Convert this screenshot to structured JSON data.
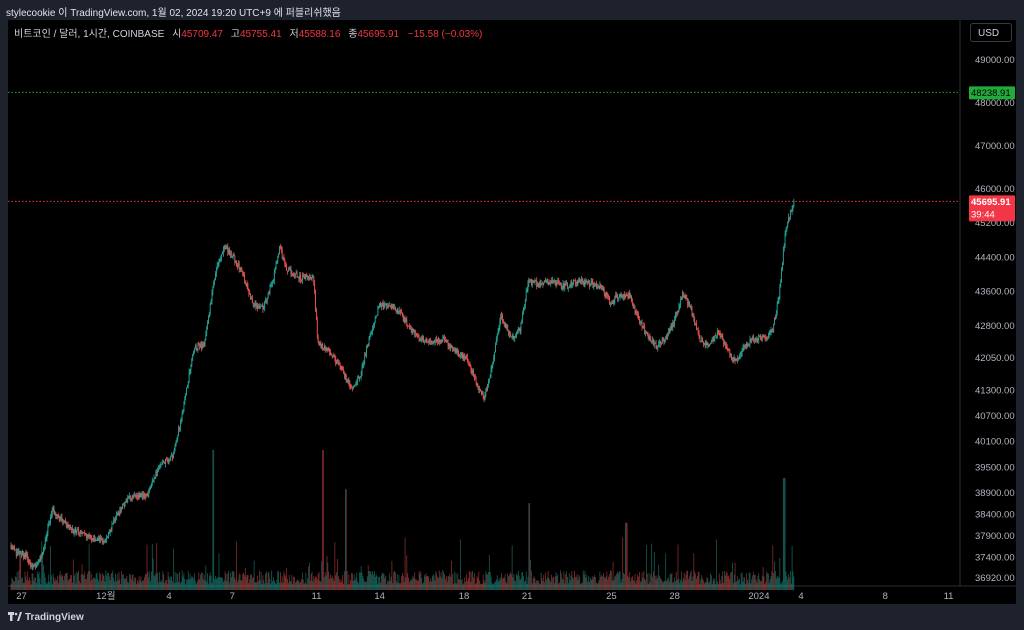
{
  "caption": "stylecookie 이 TradingView.com, 1월 02, 2024 19:20 UTC+9 에 퍼블리쉬했음",
  "symbol_title": "비트코인 / 달러, 1시간, COINBASE",
  "ohlc": {
    "open_label": "시",
    "open": "45709.47",
    "high_label": "고",
    "high": "45755.41",
    "low_label": "저",
    "low": "45588.16",
    "close_label": "종",
    "close": "45695.91",
    "change": "−15.58 (−0.03%)"
  },
  "currency_button": "USD",
  "branding": "TradingView",
  "colors": {
    "up": "#26a69a",
    "down": "#ef5350",
    "last_price": "#f23645",
    "alert_line": "#22ab3a"
  },
  "chart_data": {
    "type": "candlestick",
    "title": "비트코인 / 달러, 1시간, COINBASE",
    "ylim": [
      36700,
      49600
    ],
    "x_ticks": [
      {
        "label": "27",
        "day": 27
      },
      {
        "label": "12월",
        "day": 31
      },
      {
        "label": "4",
        "day": 34
      },
      {
        "label": "7",
        "day": 37
      },
      {
        "label": "11",
        "day": 41
      },
      {
        "label": "14",
        "day": 44
      },
      {
        "label": "18",
        "day": 48
      },
      {
        "label": "21",
        "day": 51
      },
      {
        "label": "25",
        "day": 55
      },
      {
        "label": "28",
        "day": 58
      },
      {
        "label": "2024",
        "day": 62
      },
      {
        "label": "4",
        "day": 64
      },
      {
        "label": "8",
        "day": 68
      },
      {
        "label": "11",
        "day": 71
      }
    ],
    "y_ticks": [
      36920,
      37400,
      37900,
      38400,
      38900,
      39500,
      40100,
      40700,
      41300,
      42050,
      42800,
      43600,
      44400,
      45200,
      46000,
      47000,
      48000,
      49000
    ],
    "y_tick_labels": [
      "36920.00",
      "37400.00",
      "37900.00",
      "38400.00",
      "38900.00",
      "39500.00",
      "40100.00",
      "40700.00",
      "41300.00",
      "42050.00",
      "42800.00",
      "43600.00",
      "44400.00",
      "45200.00",
      "46000.00",
      "47000.00",
      "48000.00",
      "49000.00"
    ],
    "price_path": [
      [
        26.5,
        37700
      ],
      [
        26.8,
        37500
      ],
      [
        27.2,
        37450
      ],
      [
        27.6,
        37150
      ],
      [
        28,
        37450
      ],
      [
        28.5,
        38500
      ],
      [
        29,
        38250
      ],
      [
        29.5,
        38000
      ],
      [
        30,
        37950
      ],
      [
        30.5,
        37800
      ],
      [
        31,
        37800
      ],
      [
        31.7,
        38500
      ],
      [
        32.3,
        38850
      ],
      [
        33,
        38850
      ],
      [
        33.6,
        39550
      ],
      [
        34.2,
        39750
      ],
      [
        34.7,
        40800
      ],
      [
        35.2,
        42250
      ],
      [
        35.7,
        42350
      ],
      [
        36.3,
        44200
      ],
      [
        36.7,
        44650
      ],
      [
        37,
        44450
      ],
      [
        37.5,
        44050
      ],
      [
        38,
        43350
      ],
      [
        38.5,
        43200
      ],
      [
        39,
        43900
      ],
      [
        39.3,
        44650
      ],
      [
        39.6,
        44100
      ],
      [
        40.3,
        43900
      ],
      [
        40.9,
        43950
      ],
      [
        41.1,
        42400
      ],
      [
        41.6,
        42200
      ],
      [
        42.2,
        41800
      ],
      [
        42.7,
        41300
      ],
      [
        43.1,
        41600
      ],
      [
        43.5,
        42400
      ],
      [
        44,
        43250
      ],
      [
        44.5,
        43300
      ],
      [
        45,
        43100
      ],
      [
        45.5,
        42700
      ],
      [
        46,
        42500
      ],
      [
        46.6,
        42400
      ],
      [
        47.1,
        42500
      ],
      [
        47.6,
        42200
      ],
      [
        48.2,
        42000
      ],
      [
        48.7,
        41400
      ],
      [
        49,
        41100
      ],
      [
        49.3,
        41650
      ],
      [
        49.8,
        43050
      ],
      [
        50.3,
        42500
      ],
      [
        50.7,
        42700
      ],
      [
        51.1,
        43850
      ],
      [
        51.6,
        43750
      ],
      [
        52.2,
        43850
      ],
      [
        52.8,
        43700
      ],
      [
        53.5,
        43850
      ],
      [
        54.1,
        43750
      ],
      [
        54.6,
        43700
      ],
      [
        55,
        43300
      ],
      [
        55.3,
        43500
      ],
      [
        55.9,
        43500
      ],
      [
        56.3,
        42950
      ],
      [
        56.8,
        42500
      ],
      [
        57.2,
        42300
      ],
      [
        57.7,
        42550
      ],
      [
        58.1,
        43000
      ],
      [
        58.4,
        43550
      ],
      [
        58.8,
        43200
      ],
      [
        59.2,
        42500
      ],
      [
        59.7,
        42300
      ],
      [
        60.1,
        42700
      ],
      [
        60.5,
        42300
      ],
      [
        60.9,
        41950
      ],
      [
        61.4,
        42300
      ],
      [
        61.8,
        42500
      ],
      [
        62.3,
        42500
      ],
      [
        62.7,
        42700
      ],
      [
        63,
        43500
      ],
      [
        63.3,
        45000
      ],
      [
        63.7,
        45696
      ]
    ],
    "volume_peaks": [
      [
        36.1,
        1.0
      ],
      [
        41.3,
        1.0
      ],
      [
        42.4,
        0.72
      ],
      [
        51.1,
        0.62
      ],
      [
        55.7,
        0.48
      ],
      [
        63.2,
        0.8
      ]
    ],
    "alert_line": {
      "value": 48238.91,
      "label": "48238.91"
    },
    "last_price": {
      "value": 45695.91,
      "label": "45695.91",
      "countdown": "39:44"
    }
  }
}
